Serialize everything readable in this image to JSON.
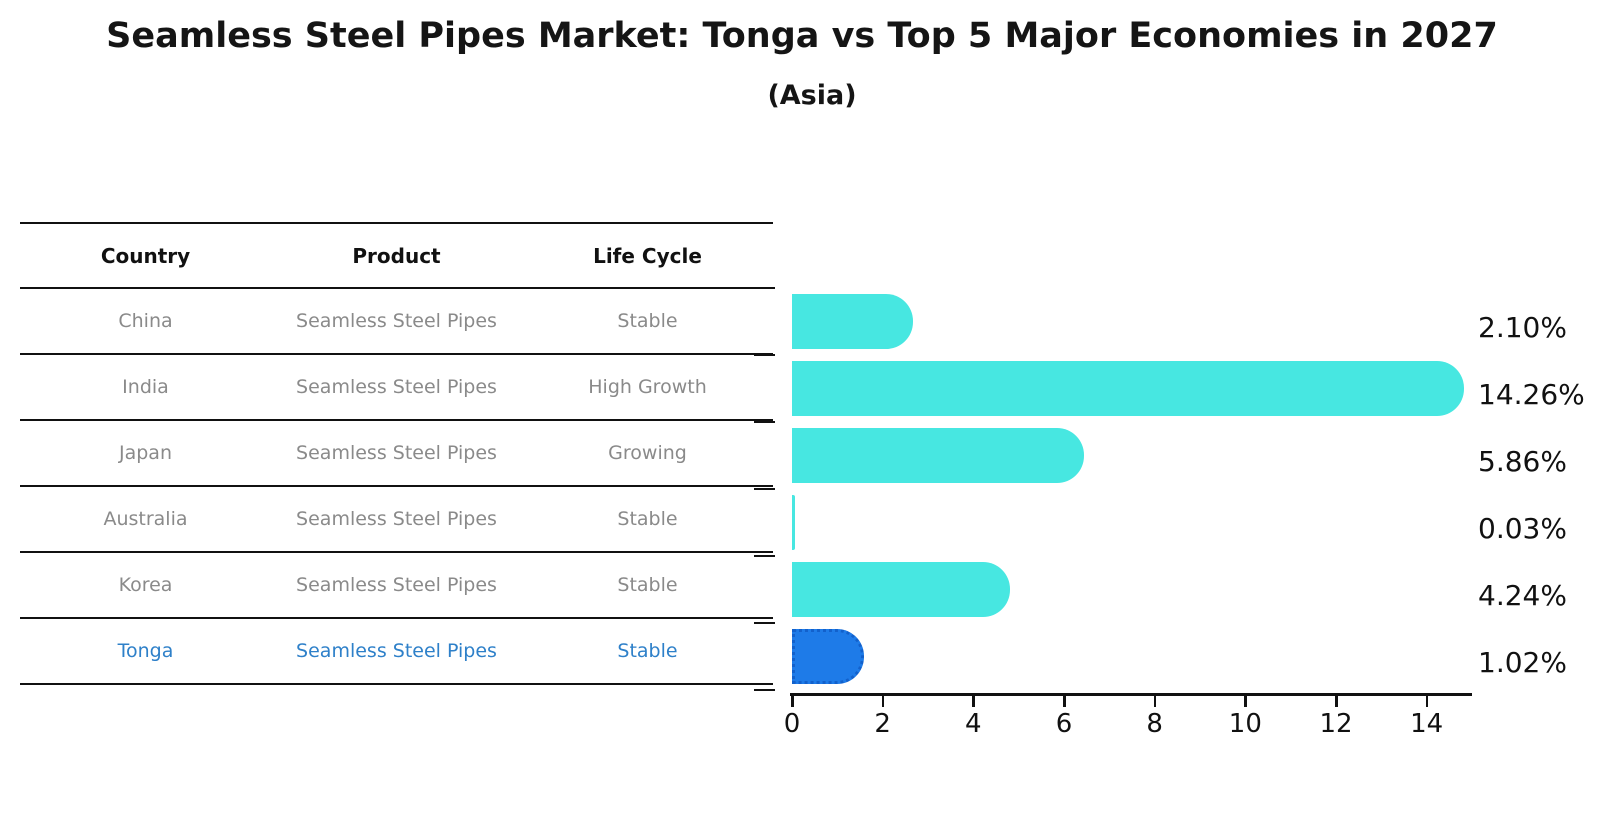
{
  "header": {
    "title": "Seamless Steel Pipes Market: Tonga vs Top 5 Major Economies in 2027",
    "subtitle": "(Asia)"
  },
  "table": {
    "columns": [
      "Country",
      "Product",
      "Life Cycle"
    ],
    "rows": [
      {
        "country": "China",
        "product": "Seamless Steel Pipes",
        "life_cycle": "Stable",
        "highlighted": false
      },
      {
        "country": "India",
        "product": "Seamless Steel Pipes",
        "life_cycle": "High Growth",
        "highlighted": false
      },
      {
        "country": "Japan",
        "product": "Seamless Steel Pipes",
        "life_cycle": "Growing",
        "highlighted": false
      },
      {
        "country": "Australia",
        "product": "Seamless Steel Pipes",
        "life_cycle": "Stable",
        "highlighted": false
      },
      {
        "country": "Korea",
        "product": "Seamless Steel Pipes",
        "life_cycle": "Stable",
        "highlighted": false
      },
      {
        "country": "Tonga",
        "product": "Seamless Steel Pipes",
        "life_cycle": "Stable",
        "highlighted": true
      }
    ]
  },
  "chart_data": {
    "type": "bar",
    "orientation": "horizontal",
    "title": "Seamless Steel Pipes Market: Tonga vs Top 5 Major Economies in 2027",
    "subtitle": "(Asia)",
    "categories": [
      "China",
      "India",
      "Japan",
      "Australia",
      "Korea",
      "Tonga"
    ],
    "values": [
      2.1,
      14.26,
      5.86,
      0.03,
      4.24,
      1.02
    ],
    "value_labels": [
      "2.10%",
      "14.26%",
      "5.86%",
      "0.03%",
      "4.24%",
      "1.02%"
    ],
    "xlim": [
      0,
      15
    ],
    "x_ticks": [
      0,
      2,
      4,
      6,
      8,
      10,
      12,
      14
    ],
    "highlight_index": 5,
    "grid": false,
    "legend": "none"
  },
  "colors": {
    "bar": "#47E7E1",
    "highlight_bar": "#1E7BE8",
    "highlight_border": "#1261CC",
    "row_text": "#8A8A8A",
    "highlight_text": "#2E80C9",
    "axis": "#111111",
    "background": "#FFFFFF"
  }
}
